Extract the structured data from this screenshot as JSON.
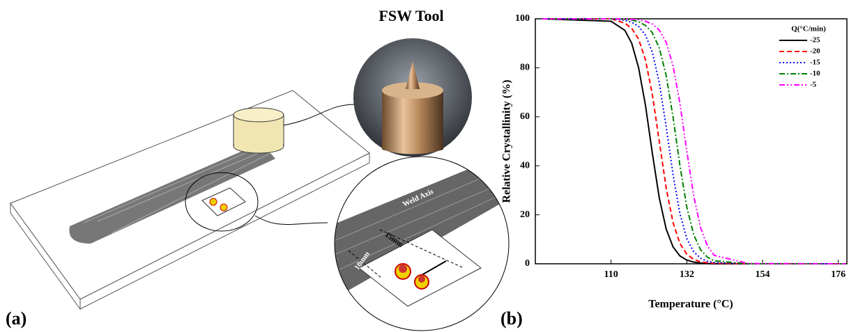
{
  "diagram": {
    "tool_title": "FSW Tool",
    "weld_axis": "Weld Axis",
    "dim_long": "15mm",
    "dim_short": "10mm",
    "panel_label": "(a)"
  },
  "chart_data": {
    "type": "line",
    "panel_label": "(b)",
    "x_label": "Temperature (°C)",
    "y_label": "Relative Crystallinity (%)",
    "legend_title": "Q(°C/min)",
    "legend": "upper right",
    "grid": false,
    "xlim": [
      88,
      178.5
    ],
    "xticks": [
      110,
      132,
      154,
      176
    ],
    "ylim": [
      0,
      100
    ],
    "yticks": [
      0,
      20,
      40,
      60,
      80,
      100
    ],
    "x": [
      90,
      110,
      114,
      116,
      118,
      120,
      122,
      124,
      126,
      128,
      130,
      132,
      134,
      136,
      138,
      140,
      150,
      178
    ],
    "series": [
      {
        "name": "-25",
        "color": "#000000",
        "linestyle": "solid",
        "values": [
          100,
          99,
          95.3,
          90,
          80,
          64.6,
          45,
          26.9,
          14.2,
          6.9,
          3.2,
          1.5,
          0.7,
          0.3,
          0.1,
          0,
          0,
          0
        ]
      },
      {
        "name": "-20",
        "color": "#ff0000",
        "linestyle": "dashed",
        "values": [
          100,
          100,
          98.2,
          96.1,
          91.7,
          83.2,
          69,
          50,
          31,
          16.8,
          8.3,
          3.9,
          1.8,
          0.8,
          0.4,
          0.2,
          0,
          0
        ]
      },
      {
        "name": "-15",
        "color": "#0000ff",
        "linestyle": "dotted",
        "values": [
          100,
          100,
          99.4,
          98.6,
          96.9,
          93.3,
          86.3,
          73.9,
          56,
          36.4,
          20.4,
          10.3,
          4.9,
          2.3,
          1,
          0.5,
          0,
          0
        ]
      },
      {
        "name": "-10",
        "color": "#008000",
        "linestyle": "dashdot",
        "values": [
          100,
          100,
          99.8,
          99.5,
          98.8,
          97.3,
          94.3,
          88.1,
          76.9,
          59.9,
          40.1,
          23.1,
          11.9,
          5.7,
          2.7,
          1.2,
          0,
          0
        ]
      },
      {
        "name": "-5",
        "color": "#ff00ff",
        "linestyle": "dashdotdot",
        "values": [
          100,
          100,
          99.9,
          99.8,
          99.6,
          99,
          97.9,
          95.4,
          90.4,
          80.8,
          65.5,
          46,
          27.7,
          14.7,
          7.2,
          3.4,
          0.1,
          0
        ]
      }
    ]
  }
}
